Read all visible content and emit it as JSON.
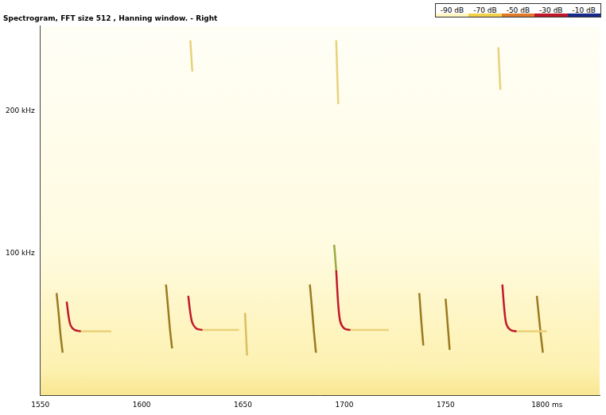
{
  "chart_data": {
    "type": "line",
    "title": "Spectrogram, FFT size 512 , Hanning window. - Right",
    "xlim": [
      1550,
      1826
    ],
    "xticks": [
      1550,
      1600,
      1650,
      1700,
      1750,
      {
        "value": 1800,
        "label": "1800 ms"
      }
    ],
    "ylim": [
      0,
      260
    ],
    "yticks": [
      {
        "value": 100,
        "label": "100 kHz"
      },
      {
        "value": 200,
        "label": "200 kHz"
      }
    ],
    "grid": false,
    "colorbar": {
      "range": [
        -90,
        -10
      ],
      "ticks": [
        {
          "value": -90,
          "label": "-90 dB"
        },
        {
          "value": -70,
          "label": "-70 dB"
        },
        {
          "value": -50,
          "label": "-50 dB"
        },
        {
          "value": -30,
          "label": "-30 dB"
        },
        {
          "value": -10,
          "label": "-10 dB"
        }
      ],
      "colors": [
        "#fff6c0",
        "#f2d04a",
        "#e07a2a",
        "#c0182a",
        "#1a2a8a"
      ]
    },
    "series": [
      {
        "color": "#9a7a20",
        "x": [
          1558,
          1559,
          1560,
          1561
        ],
        "values": [
          72,
          58,
          42,
          30
        ]
      },
      {
        "color": "#c0182a",
        "x": [
          1563,
          1564,
          1565,
          1567,
          1570
        ],
        "values": [
          66,
          55,
          49,
          46,
          45
        ]
      },
      {
        "color": "#ead27a",
        "x": [
          1570,
          1585
        ],
        "values": [
          45,
          45
        ]
      },
      {
        "color": "#9a7a20",
        "x": [
          1612,
          1613,
          1614,
          1615
        ],
        "values": [
          78,
          62,
          46,
          33
        ]
      },
      {
        "color": "#c0182a",
        "x": [
          1623,
          1624,
          1625,
          1627,
          1630
        ],
        "values": [
          70,
          58,
          51,
          47,
          46
        ]
      },
      {
        "color": "#ead27a",
        "x": [
          1630,
          1648
        ],
        "values": [
          46,
          46
        ]
      },
      {
        "color": "#e6d27a",
        "x": [
          1624,
          1625
        ],
        "values": [
          250,
          228
        ]
      },
      {
        "color": "#d8c060",
        "x": [
          1651,
          1652
        ],
        "values": [
          58,
          28
        ]
      },
      {
        "color": "#9a7a20",
        "x": [
          1683,
          1684,
          1685,
          1686
        ],
        "values": [
          78,
          62,
          45,
          30
        ]
      },
      {
        "color": "#9aaa40",
        "x": [
          1695,
          1696
        ],
        "values": [
          106,
          88
        ]
      },
      {
        "color": "#c0182a",
        "x": [
          1696,
          1697,
          1698,
          1700,
          1703
        ],
        "values": [
          88,
          64,
          52,
          47,
          46
        ]
      },
      {
        "color": "#ead27a",
        "x": [
          1703,
          1722
        ],
        "values": [
          46,
          46
        ]
      },
      {
        "color": "#e6d27a",
        "x": [
          1696,
          1697
        ],
        "values": [
          250,
          205
        ]
      },
      {
        "color": "#9a7a20",
        "x": [
          1737,
          1738,
          1739
        ],
        "values": [
          72,
          52,
          35
        ]
      },
      {
        "color": "#9a7a20",
        "x": [
          1750,
          1751,
          1752
        ],
        "values": [
          68,
          50,
          32
        ]
      },
      {
        "color": "#c0182a",
        "x": [
          1778,
          1779,
          1780,
          1782,
          1785
        ],
        "values": [
          78,
          60,
          50,
          46,
          45
        ]
      },
      {
        "color": "#ead27a",
        "x": [
          1785,
          1800
        ],
        "values": [
          45,
          45
        ]
      },
      {
        "color": "#e6d27a",
        "x": [
          1776,
          1777
        ],
        "values": [
          245,
          215
        ]
      },
      {
        "color": "#9a7a20",
        "x": [
          1795,
          1796,
          1797,
          1798
        ],
        "values": [
          70,
          56,
          42,
          30
        ]
      }
    ]
  }
}
